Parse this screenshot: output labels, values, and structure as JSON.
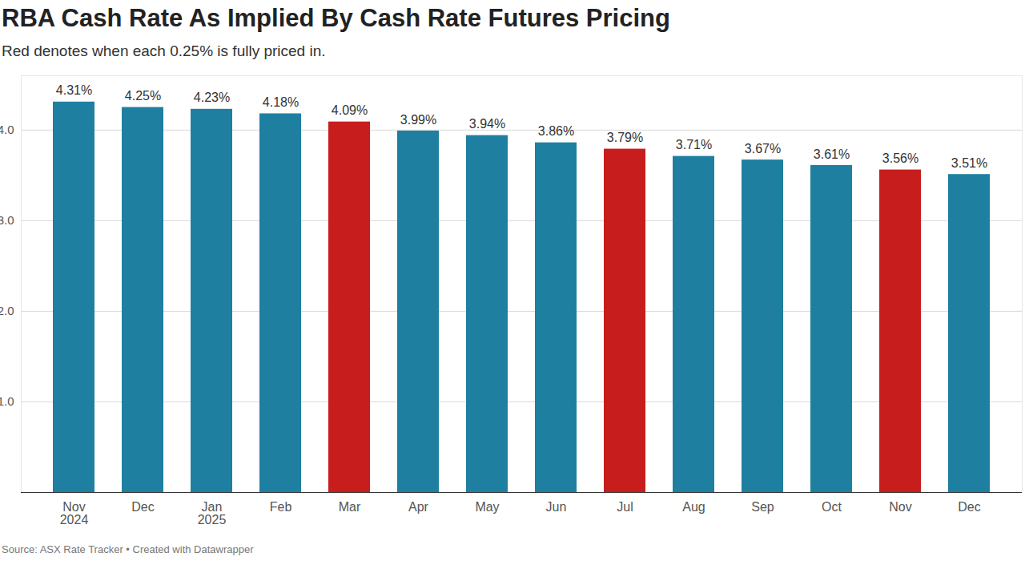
{
  "chart_data": {
    "type": "bar",
    "title": "RBA Cash Rate As Implied By Cash Rate Futures Pricing",
    "subtitle": "Red denotes when each 0.25% is fully priced in.",
    "source": "Source: ASX Rate Tracker • Created with Datawrapper",
    "categories": [
      "Nov 2024",
      "Dec",
      "Jan 2025",
      "Feb",
      "Mar",
      "Apr",
      "May",
      "Jun",
      "Jul",
      "Aug",
      "Sep",
      "Oct",
      "Nov",
      "Dec"
    ],
    "values": [
      4.31,
      4.25,
      4.23,
      4.18,
      4.09,
      3.99,
      3.94,
      3.86,
      3.79,
      3.71,
      3.67,
      3.61,
      3.56,
      3.51
    ],
    "value_labels": [
      "4.31%",
      "4.25%",
      "4.23%",
      "4.18%",
      "4.09%",
      "3.99%",
      "3.94%",
      "3.86%",
      "3.79%",
      "3.71%",
      "3.67%",
      "3.61%",
      "3.56%",
      "3.51%"
    ],
    "colors": [
      "#1f7fa1",
      "#1f7fa1",
      "#1f7fa1",
      "#1f7fa1",
      "#c71e1d",
      "#1f7fa1",
      "#1f7fa1",
      "#1f7fa1",
      "#c71e1d",
      "#1f7fa1",
      "#1f7fa1",
      "#1f7fa1",
      "#c71e1d",
      "#1f7fa1"
    ],
    "ylim": [
      0,
      4.6
    ],
    "yticks": [
      1,
      2,
      3,
      4
    ],
    "grid": true,
    "data_labels": true
  }
}
